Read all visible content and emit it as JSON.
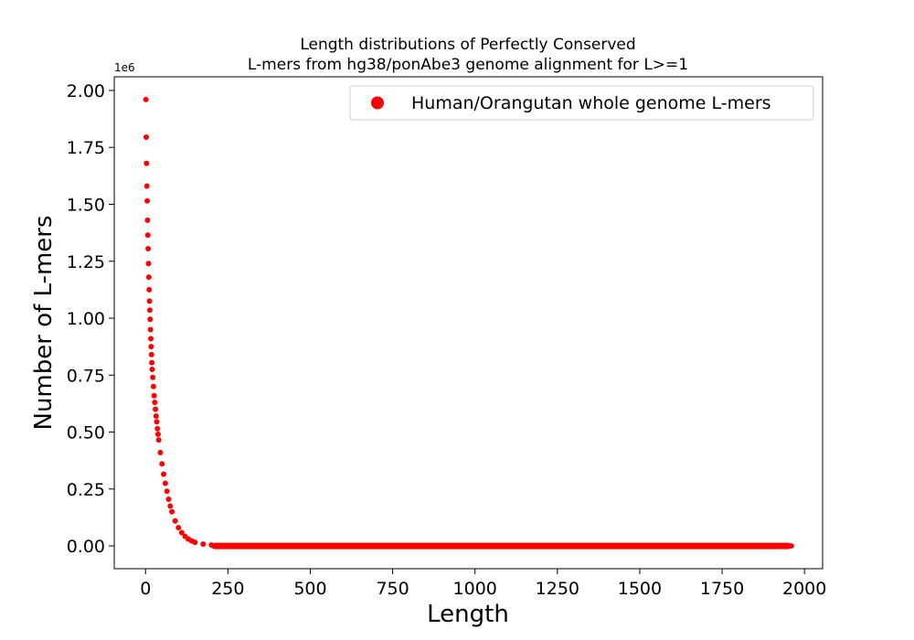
{
  "chart_data": {
    "type": "scatter",
    "title_lines": [
      "Length distributions of Perfectly Conserved",
      "L-mers from hg38/ponAbe3 genome alignment for L>=1"
    ],
    "xlabel": "Length",
    "ylabel": "Number of L-mers",
    "y_offset_label": "1e6",
    "xlim": [
      -95,
      2055
    ],
    "ylim": [
      -0.1,
      2.06
    ],
    "x_ticks": [
      0,
      250,
      500,
      750,
      1000,
      1250,
      1500,
      1750,
      2000
    ],
    "x_tick_labels": [
      "0",
      "250",
      "500",
      "750",
      "1000",
      "1250",
      "1500",
      "1750",
      "2000"
    ],
    "y_ticks": [
      0.0,
      0.25,
      0.5,
      0.75,
      1.0,
      1.25,
      1.5,
      1.75,
      2.0
    ],
    "y_tick_labels": [
      "0.00",
      "0.25",
      "0.50",
      "0.75",
      "1.00",
      "1.25",
      "1.50",
      "1.75",
      "2.00"
    ],
    "grid": false,
    "legend_position": "top-right",
    "series": [
      {
        "name": "Human/Orangutan whole genome L-mers",
        "color": "#ff0000",
        "x": [
          1,
          2,
          3,
          4,
          5,
          6,
          7,
          8,
          9,
          10,
          11,
          12,
          13,
          14,
          15,
          16,
          17,
          18,
          19,
          20,
          22,
          24,
          26,
          28,
          30,
          32,
          34,
          36,
          38,
          40,
          45,
          50,
          55,
          60,
          65,
          70,
          75,
          80,
          90,
          100,
          110,
          120,
          130,
          140,
          150,
          175,
          200,
          250,
          300,
          400,
          500,
          600,
          700,
          800,
          900,
          1000,
          1100,
          1200,
          1300,
          1400,
          1500,
          1600,
          1700,
          1800,
          1900,
          1960
        ],
        "y": [
          1.96,
          1.795,
          1.68,
          1.58,
          1.515,
          1.43,
          1.365,
          1.305,
          1.24,
          1.18,
          1.125,
          1.075,
          1.035,
          0.995,
          0.95,
          0.91,
          0.875,
          0.84,
          0.805,
          0.775,
          0.74,
          0.7,
          0.66,
          0.63,
          0.6,
          0.57,
          0.545,
          0.515,
          0.49,
          0.465,
          0.41,
          0.36,
          0.315,
          0.275,
          0.24,
          0.205,
          0.175,
          0.15,
          0.11,
          0.08,
          0.058,
          0.042,
          0.03,
          0.022,
          0.016,
          0.008,
          0.004,
          0.002,
          0.0015,
          0.001,
          0.0008,
          0.0006,
          0.0005,
          0.0004,
          0.0003,
          0.0002,
          0.0002,
          0.0001,
          0.0001,
          0.0001,
          0.0001,
          0.0,
          0.0,
          0.0,
          0.0,
          0.0
        ]
      }
    ]
  }
}
